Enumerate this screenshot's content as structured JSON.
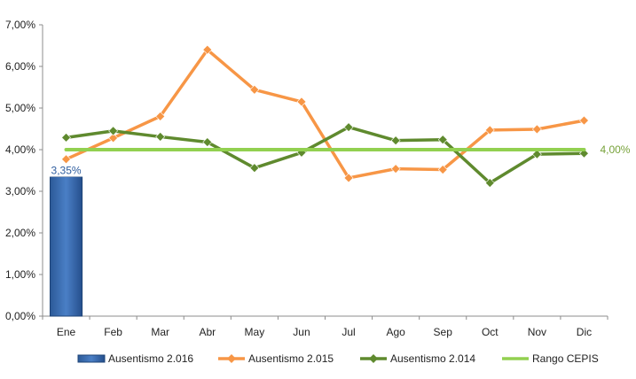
{
  "chart_data": {
    "type": "bar",
    "categories": [
      "Ene",
      "Feb",
      "Mar",
      "Abr",
      "May",
      "Jun",
      "Jul",
      "Ago",
      "Sep",
      "Oct",
      "Nov",
      "Dic"
    ],
    "ylim": [
      0,
      7
    ],
    "yticks": [
      "0,00%",
      "1,00%",
      "2,00%",
      "3,00%",
      "4,00%",
      "5,00%",
      "6,00%",
      "7,00%"
    ],
    "unit": "%",
    "grid": false,
    "legend_position": "bottom",
    "series": [
      {
        "name": "Ausentismo 2.016",
        "kind": "bar",
        "color": "#3464a8",
        "values": [
          3.35,
          null,
          null,
          null,
          null,
          null,
          null,
          null,
          null,
          null,
          null,
          null
        ],
        "data_labels": [
          "3,35%",
          "",
          "",
          "",
          "",
          "",
          "",
          "",
          "",
          "",
          "",
          ""
        ]
      },
      {
        "name": "Ausentismo 2.015",
        "kind": "line",
        "marker": "diamond",
        "color": "#f79646",
        "values": [
          3.77,
          4.28,
          4.8,
          6.4,
          5.44,
          5.15,
          3.32,
          3.54,
          3.52,
          4.47,
          4.49,
          4.7
        ]
      },
      {
        "name": "Ausentismo 2.014",
        "kind": "line",
        "marker": "diamond",
        "color": "#5f8a2e",
        "values": [
          4.29,
          4.45,
          4.31,
          4.18,
          3.56,
          3.93,
          4.54,
          4.22,
          4.24,
          3.2,
          3.89,
          3.91
        ]
      },
      {
        "name": "Rango CEPIS",
        "kind": "line",
        "marker": "none",
        "color": "#92d050",
        "values": [
          4,
          4,
          4,
          4,
          4,
          4,
          4,
          4,
          4,
          4,
          4,
          4
        ],
        "end_label": "4,00%"
      }
    ]
  }
}
